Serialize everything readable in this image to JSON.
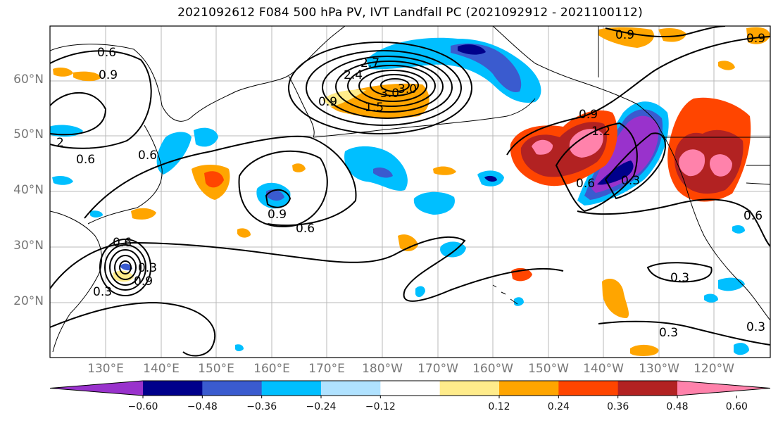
{
  "title": "2021092612 F084 500 hPa PV, IVT Landfall PC (2021092912 - 2021100112)",
  "lat_labels": [
    "60°N",
    "50°N",
    "40°N",
    "30°N",
    "20°N"
  ],
  "lon_labels": [
    "130°E",
    "140°E",
    "150°E",
    "160°E",
    "170°E",
    "180°W",
    "170°W",
    "160°W",
    "150°W",
    "140°W",
    "130°W",
    "120°W"
  ],
  "colorbar": {
    "ticks": [
      "−0.60",
      "−0.48",
      "−0.36",
      "−0.24",
      "−0.12",
      "0.12",
      "0.24",
      "0.36",
      "0.48",
      "0.60"
    ],
    "colors": [
      "#9932cc",
      "#00008b",
      "#3a5bcf",
      "#00bfff",
      "#b0e2ff",
      "#ffffff",
      "#ffec8b",
      "#ffa500",
      "#ff4500",
      "#b22222",
      "#ff82ab"
    ]
  },
  "contour_labels": [
    "0.6",
    "0.9",
    "0.9",
    "2",
    "0.6",
    "0.9",
    "0.6",
    "0.3",
    "0.6",
    "0.9",
    "2.4",
    "2.7",
    "3.0",
    "3.0",
    "1.5",
    "0.9",
    "0.9",
    "1.2",
    "0.6",
    "0.3",
    "0.9",
    "0.6",
    "0.3",
    "0.3",
    "0.3",
    "0.6",
    "0.3"
  ]
}
